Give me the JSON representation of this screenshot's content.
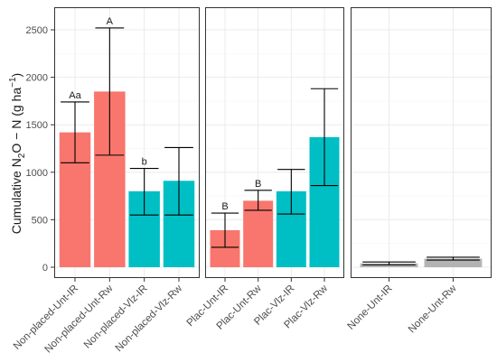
{
  "chart_data": {
    "type": "bar",
    "ylabel": {
      "main": "Cumulative N",
      "sub2": "2",
      "mid": "O − N (g ha",
      "sup": "−1",
      "end": ")"
    },
    "ylim": [
      0,
      2700
    ],
    "yticks": [
      0,
      500,
      1000,
      1500,
      2000,
      2500
    ],
    "grid": true,
    "colors": {
      "red": "#f8766d",
      "teal": "#00bfc4",
      "gray": "#b3b3b3"
    },
    "panels": [
      {
        "bars": [
          {
            "category": "Non-placed-Unt-IR",
            "value": 1420,
            "err_low": 1100,
            "err_high": 1740,
            "color": "red",
            "label": "Aa"
          },
          {
            "category": "Non-placed-Unt-Rw",
            "value": 1850,
            "err_low": 1180,
            "err_high": 2520,
            "color": "red",
            "label": "A"
          },
          {
            "category": "Non-placed-Vlz-IR",
            "value": 800,
            "err_low": 550,
            "err_high": 1040,
            "color": "teal",
            "label": "b"
          },
          {
            "category": "Non-placed-Vlz-Rw",
            "value": 910,
            "err_low": 550,
            "err_high": 1260,
            "color": "teal",
            "label": ""
          }
        ]
      },
      {
        "bars": [
          {
            "category": "Plac-Unt-IR",
            "value": 390,
            "err_low": 210,
            "err_high": 570,
            "color": "red",
            "label": "B"
          },
          {
            "category": "Plac-Unt-Rw",
            "value": 700,
            "err_low": 600,
            "err_high": 810,
            "color": "red",
            "label": "B"
          },
          {
            "category": "Plac-Vlz-IR",
            "value": 800,
            "err_low": 560,
            "err_high": 1030,
            "color": "teal",
            "label": ""
          },
          {
            "category": "Plac-Vlz-Rw",
            "value": 1370,
            "err_low": 860,
            "err_high": 1880,
            "color": "teal",
            "label": ""
          }
        ]
      },
      {
        "bars": [
          {
            "category": "None-Unt-IR",
            "value": 40,
            "err_low": 25,
            "err_high": 55,
            "color": "gray",
            "label": ""
          },
          {
            "category": "None-Unt-Rw",
            "value": 90,
            "err_low": 75,
            "err_high": 105,
            "color": "gray",
            "label": ""
          }
        ]
      }
    ]
  }
}
